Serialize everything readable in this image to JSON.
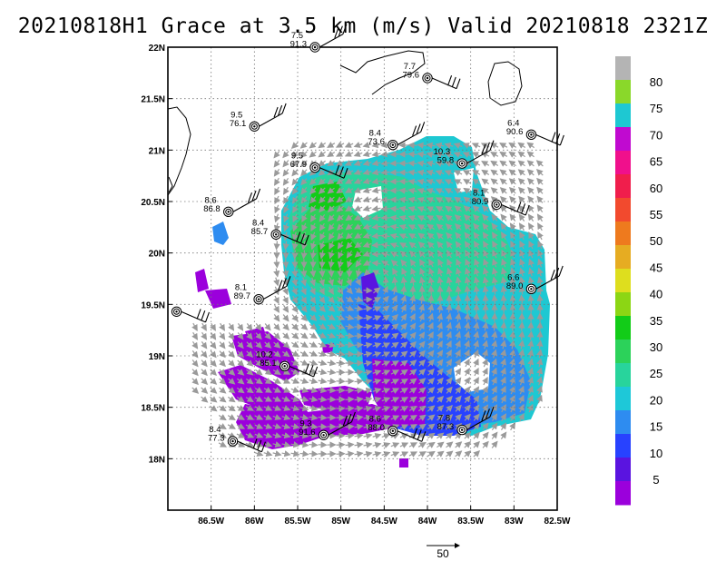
{
  "title": "20210818H1 Grace at 3.5 km (m/s) Valid 20210818 2321Z",
  "map": {
    "lon_range": [
      -87.0,
      -82.5
    ],
    "lat_range": [
      17.5,
      22.0
    ],
    "lon_ticks": [
      {
        "v": -86.5,
        "label": "86.5W"
      },
      {
        "v": -86.0,
        "label": "86W"
      },
      {
        "v": -85.5,
        "label": "85.5W"
      },
      {
        "v": -85.0,
        "label": "85W"
      },
      {
        "v": -84.5,
        "label": "84.5W"
      },
      {
        "v": -84.0,
        "label": "84W"
      },
      {
        "v": -83.5,
        "label": "83.5W"
      },
      {
        "v": -83.0,
        "label": "83W"
      },
      {
        "v": -82.5,
        "label": "82.5W"
      }
    ],
    "lat_ticks": [
      {
        "v": 18.0,
        "label": "18N"
      },
      {
        "v": 18.5,
        "label": "18.5N"
      },
      {
        "v": 19.0,
        "label": "19N"
      },
      {
        "v": 19.5,
        "label": "19.5N"
      },
      {
        "v": 20.0,
        "label": "20N"
      },
      {
        "v": 20.5,
        "label": "20.5N"
      },
      {
        "v": 21.0,
        "label": "21N"
      },
      {
        "v": 21.5,
        "label": "21.5N"
      },
      {
        "v": 22.0,
        "label": "22N"
      }
    ],
    "grid": "dotted",
    "center_lon": -84.65,
    "center_lat": 19.75
  },
  "colorbar": {
    "labels": [
      "5",
      "10",
      "15",
      "20",
      "25",
      "30",
      "35",
      "40",
      "45",
      "50",
      "55",
      "60",
      "65",
      "70",
      "75",
      "80"
    ],
    "colors": [
      "#9b00dc",
      "#5a14e0",
      "#2842ff",
      "#2e8cf0",
      "#1ec8d8",
      "#28d49c",
      "#2cd25a",
      "#12cc18",
      "#8cd614",
      "#dede1e",
      "#e6ac22",
      "#ee7a1e",
      "#f24a2e",
      "#f01e4c",
      "#f0108c",
      "#c00ad0",
      "#1ec8d2",
      "#8ad82a",
      "#b4b4b4"
    ]
  },
  "scale": {
    "label": "50"
  },
  "stations": [
    {
      "lon": -85.3,
      "lat": 22.0,
      "v1": "7.5",
      "v2": "91.3"
    },
    {
      "lon": -84.0,
      "lat": 21.7,
      "v1": "7.7",
      "v2": "79.6"
    },
    {
      "lon": -86.0,
      "lat": 21.23,
      "v1": "9.5",
      "v2": "76.1"
    },
    {
      "lon": -82.8,
      "lat": 21.15,
      "v1": "6.4",
      "v2": "90.6"
    },
    {
      "lon": -84.4,
      "lat": 21.05,
      "v1": "8.4",
      "v2": "73.6"
    },
    {
      "lon": -85.3,
      "lat": 20.83,
      "v1": "9.5",
      "v2": "67.9"
    },
    {
      "lon": -83.6,
      "lat": 20.87,
      "v1": "10.3",
      "v2": "59.8"
    },
    {
      "lon": -83.2,
      "lat": 20.47,
      "v1": "8.1",
      "v2": "80.9"
    },
    {
      "lon": -86.3,
      "lat": 20.4,
      "v1": "8.6",
      "v2": "86.8"
    },
    {
      "lon": -85.75,
      "lat": 20.18,
      "v1": "8.4",
      "v2": "85.7"
    },
    {
      "lon": -85.95,
      "lat": 19.55,
      "v1": "8.1",
      "v2": "89.7"
    },
    {
      "lon": -86.9,
      "lat": 19.43,
      "v1": "",
      "v2": ""
    },
    {
      "lon": -82.8,
      "lat": 19.65,
      "v1": "6.6",
      "v2": "89.0"
    },
    {
      "lon": -85.65,
      "lat": 18.9,
      "v1": "10.2",
      "v2": "85.1"
    },
    {
      "lon": -85.2,
      "lat": 18.23,
      "v1": "9.3",
      "v2": "91.6"
    },
    {
      "lon": -84.4,
      "lat": 18.27,
      "v1": "8.6",
      "v2": "88.0"
    },
    {
      "lon": -83.6,
      "lat": 18.28,
      "v1": "7.8",
      "v2": "87.3"
    },
    {
      "lon": -86.25,
      "lat": 18.17,
      "v1": "8.4",
      "v2": "77.3"
    }
  ]
}
